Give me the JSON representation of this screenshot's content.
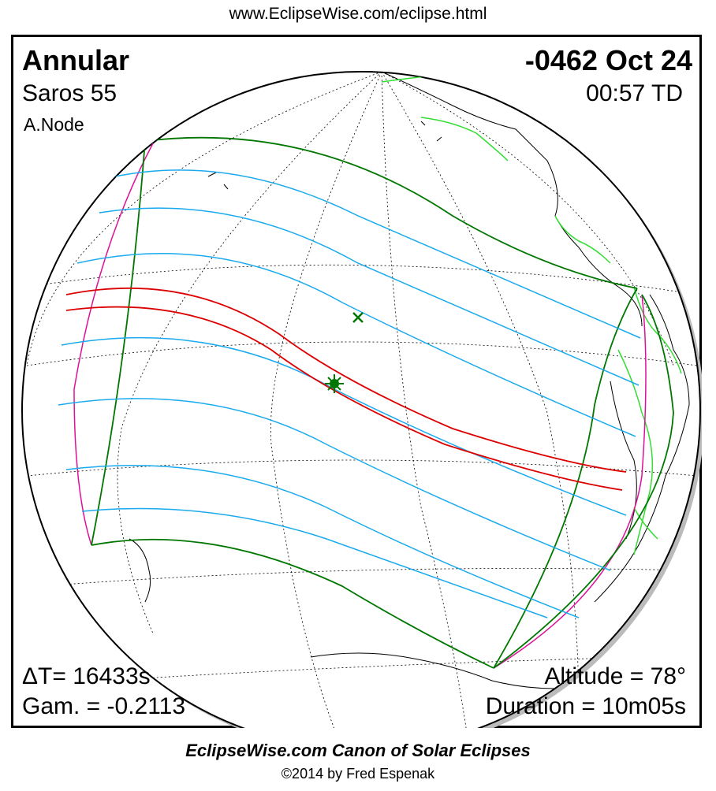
{
  "header": {
    "url": "www.EclipseWise.com/eclipse.html"
  },
  "eclipse": {
    "type": "Annular",
    "date": "-0462 Oct 24",
    "saros": "Saros  55",
    "time": "00:57 TD",
    "node": "A.Node",
    "delta_t": "ΔT=  16433s",
    "gamma": "Gam. = -0.2113",
    "altitude": "Altitude = 78°",
    "duration": "Duration = 10m05s"
  },
  "footer": {
    "title": "EclipseWise.com Canon of Solar Eclipses",
    "copyright": "©2014 by Fred Espenak"
  },
  "colors": {
    "central_path": "#dd0000",
    "penumbral_limits": "#007700",
    "hourly_lines": "#1aaaee",
    "rise_set_curves": "#dd1199",
    "coastlines": "#000000",
    "political_borders": "#33dd33",
    "graticule": "#000000"
  },
  "markers": {
    "greatest_eclipse": "sun-icon",
    "greatest_duration": "cross-icon"
  }
}
